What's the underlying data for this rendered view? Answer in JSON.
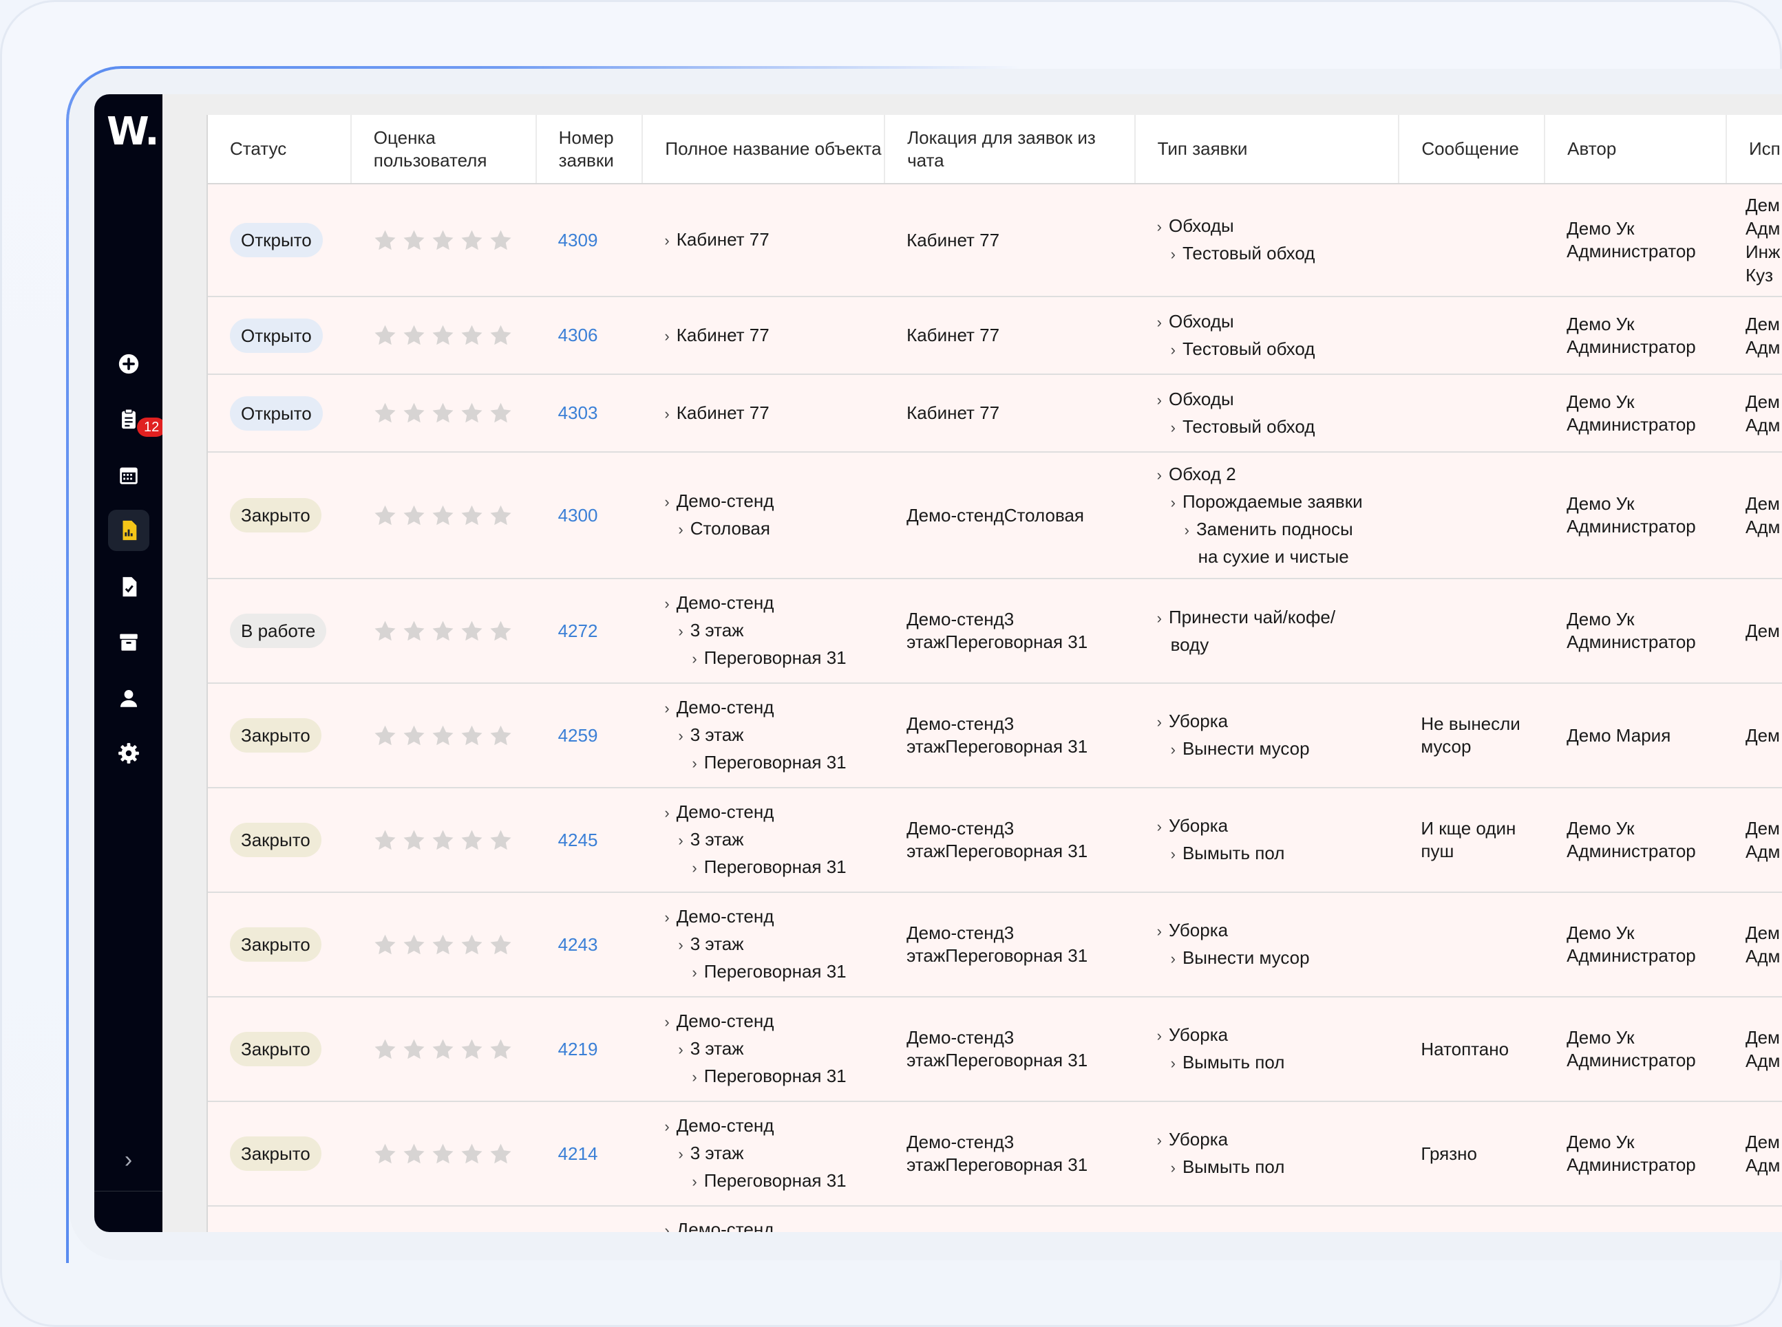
{
  "app": {
    "logo": "W."
  },
  "sidebar": {
    "items": [
      {
        "name": "add",
        "icon": "plus-circle-icon"
      },
      {
        "name": "requests",
        "icon": "clipboard-icon",
        "badge": "12"
      },
      {
        "name": "calendar",
        "icon": "calendar-icon"
      },
      {
        "name": "reports",
        "icon": "report-icon",
        "active": true
      },
      {
        "name": "tasks",
        "icon": "checklist-icon"
      },
      {
        "name": "archive",
        "icon": "archive-icon"
      },
      {
        "name": "users",
        "icon": "user-icon"
      },
      {
        "name": "settings",
        "icon": "gear-icon"
      }
    ],
    "collapse_label": "›",
    "active_color": "#f5c518"
  },
  "table": {
    "headers": {
      "status": "Статус",
      "rating": "Оценка пользователя",
      "number": "Номер заявки",
      "object": "Полное название объекта",
      "location": "Локация для заявок из чата",
      "type": "Тип заявки",
      "message": "Сообщение",
      "author": "Автор",
      "executor": "Исп"
    },
    "rows": [
      {
        "status": "Открыто",
        "kind": "open",
        "number": "4309",
        "object": [
          "Кабинет 77"
        ],
        "location": "Кабинет 77",
        "type": [
          "Обходы",
          "Тестовый обход"
        ],
        "message": "",
        "author": "Демо Ук Администратор",
        "executor": [
          "Дем",
          "Адм",
          "Инж",
          "Куз"
        ]
      },
      {
        "status": "Открыто",
        "kind": "open",
        "number": "4306",
        "object": [
          "Кабинет 77"
        ],
        "location": "Кабинет 77",
        "type": [
          "Обходы",
          "Тестовый обход"
        ],
        "message": "",
        "author": "Демо Ук Администратор",
        "executor": [
          "Дем",
          "Адм"
        ]
      },
      {
        "status": "Открыто",
        "kind": "open",
        "number": "4303",
        "object": [
          "Кабинет 77"
        ],
        "location": "Кабинет 77",
        "type": [
          "Обходы",
          "Тестовый обход"
        ],
        "message": "",
        "author": "Демо Ук Администратор",
        "executor": [
          "Дем",
          "Адм"
        ]
      },
      {
        "status": "Закрыто",
        "kind": "closed",
        "number": "4300",
        "object": [
          "Демо-стенд",
          "Столовая"
        ],
        "location": "Демо-стендСтоловая",
        "type": [
          "Обход 2",
          "Порождаемые заявки",
          "Заменить подносы",
          "на сухие и чистые"
        ],
        "message": "",
        "author": "Демо Ук Администратор",
        "executor": [
          "Дем",
          "Адм"
        ]
      },
      {
        "status": "В работе",
        "kind": "work",
        "number": "4272",
        "object": [
          "Демо-стенд",
          "3 этаж",
          "Переговорная 31"
        ],
        "location": "Демо-стенд3 этажПереговорная 31",
        "type": [
          "Принести чай/кофе/",
          "воду"
        ],
        "message": "",
        "author": "Демо Ук Администратор",
        "executor": [
          "Дем"
        ]
      },
      {
        "status": "Закрыто",
        "kind": "closed",
        "number": "4259",
        "object": [
          "Демо-стенд",
          "3 этаж",
          "Переговорная 31"
        ],
        "location": "Демо-стенд3 этажПереговорная 31",
        "type": [
          "Уборка",
          "Вынести мусор"
        ],
        "message": "Не вынесли мусор",
        "author": "Демо Мария",
        "executor": [
          "Дем"
        ]
      },
      {
        "status": "Закрыто",
        "kind": "closed",
        "number": "4245",
        "object": [
          "Демо-стенд",
          "3 этаж",
          "Переговорная 31"
        ],
        "location": "Демо-стенд3 этажПереговорная 31",
        "type": [
          "Уборка",
          "Вымыть пол"
        ],
        "message": "И кще один пуш",
        "author": "Демо Ук Администратор",
        "executor": [
          "Дем",
          "Адм"
        ]
      },
      {
        "status": "Закрыто",
        "kind": "closed",
        "number": "4243",
        "object": [
          "Демо-стенд",
          "3 этаж",
          "Переговорная 31"
        ],
        "location": "Демо-стенд3 этажПереговорная 31",
        "type": [
          "Уборка",
          "Вынести мусор"
        ],
        "message": "",
        "author": "Демо Ук Администратор",
        "executor": [
          "Дем",
          "Адм"
        ]
      },
      {
        "status": "Закрыто",
        "kind": "closed",
        "number": "4219",
        "object": [
          "Демо-стенд",
          "3 этаж",
          "Переговорная 31"
        ],
        "location": "Демо-стенд3 этажПереговорная 31",
        "type": [
          "Уборка",
          "Вымыть пол"
        ],
        "message": "Натоптано",
        "author": "Демо Ук Администратор",
        "executor": [
          "Дем",
          "Адм"
        ]
      },
      {
        "status": "Закрыто",
        "kind": "closed",
        "number": "4214",
        "object": [
          "Демо-стенд",
          "3 этаж",
          "Переговорная 31"
        ],
        "location": "Демо-стенд3 этажПереговорная 31",
        "type": [
          "Уборка",
          "Вымыть пол"
        ],
        "message": "Грязно",
        "author": "Демо Ук Администратор",
        "executor": [
          "Дем",
          "Адм"
        ]
      }
    ],
    "partial_row": {
      "object": "Демо-стенд"
    }
  }
}
